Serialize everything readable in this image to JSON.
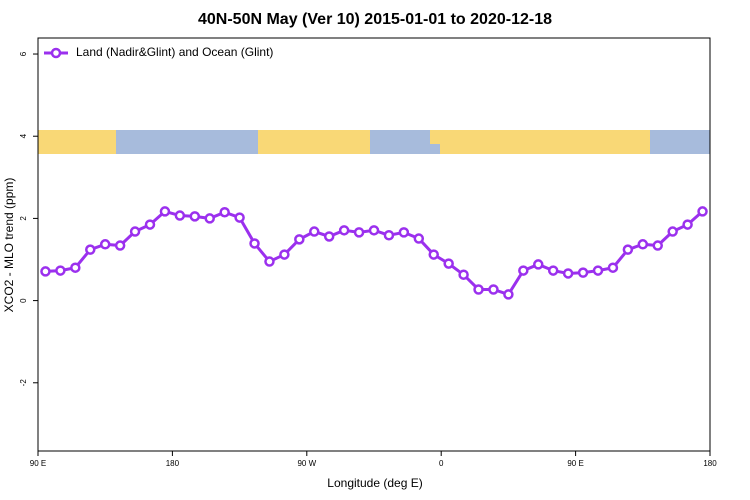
{
  "chart_data": {
    "type": "line",
    "title": "40N-50N May (Ver 10)   2015-01-01 to 2020-12-18",
    "xlabel": "Longitude (deg E)",
    "ylabel": "XCO2 - MLO trend (ppm)",
    "x": [
      94,
      102,
      110,
      118,
      126,
      134,
      142,
      150,
      158,
      166,
      174,
      182,
      190,
      198,
      206,
      214,
      222,
      230,
      238,
      246,
      254,
      262,
      270,
      278,
      286,
      294,
      302,
      310,
      318,
      326,
      334,
      342,
      350,
      358,
      366,
      374,
      382,
      390,
      398,
      406,
      414,
      422,
      430,
      438,
      446
    ],
    "series": [
      {
        "name": "Land (Nadir&Glint) and Ocean (Glint)",
        "color": "#9b30ee",
        "values": [
          0.71,
          0.73,
          0.8,
          1.24,
          1.37,
          1.34,
          1.68,
          1.85,
          2.17,
          2.07,
          2.05,
          2.0,
          2.15,
          2.02,
          1.39,
          0.95,
          1.12,
          1.49,
          1.68,
          1.56,
          1.71,
          1.66,
          1.71,
          1.59,
          1.66,
          1.51,
          1.12,
          0.9,
          0.63,
          0.27,
          0.27,
          0.15,
          0.73,
          0.88,
          0.73,
          0.66,
          0.68,
          0.73,
          0.8,
          1.24,
          1.37,
          1.34,
          1.68,
          1.85,
          2.17
        ]
      }
    ],
    "xlim": [
      90,
      450
    ],
    "xticks": [
      {
        "value": 90,
        "label": "90 E"
      },
      {
        "value": 162,
        "label": "180"
      },
      {
        "value": 234,
        "label": "90 W"
      },
      {
        "value": 306,
        "label": "0"
      },
      {
        "value": 378,
        "label": "90 E"
      },
      {
        "value": 450,
        "label": "180"
      }
    ],
    "ylim": [
      -3.66,
      6.39
    ],
    "yticks": [
      -2,
      0,
      2,
      4,
      6
    ],
    "legend": "top-left"
  }
}
